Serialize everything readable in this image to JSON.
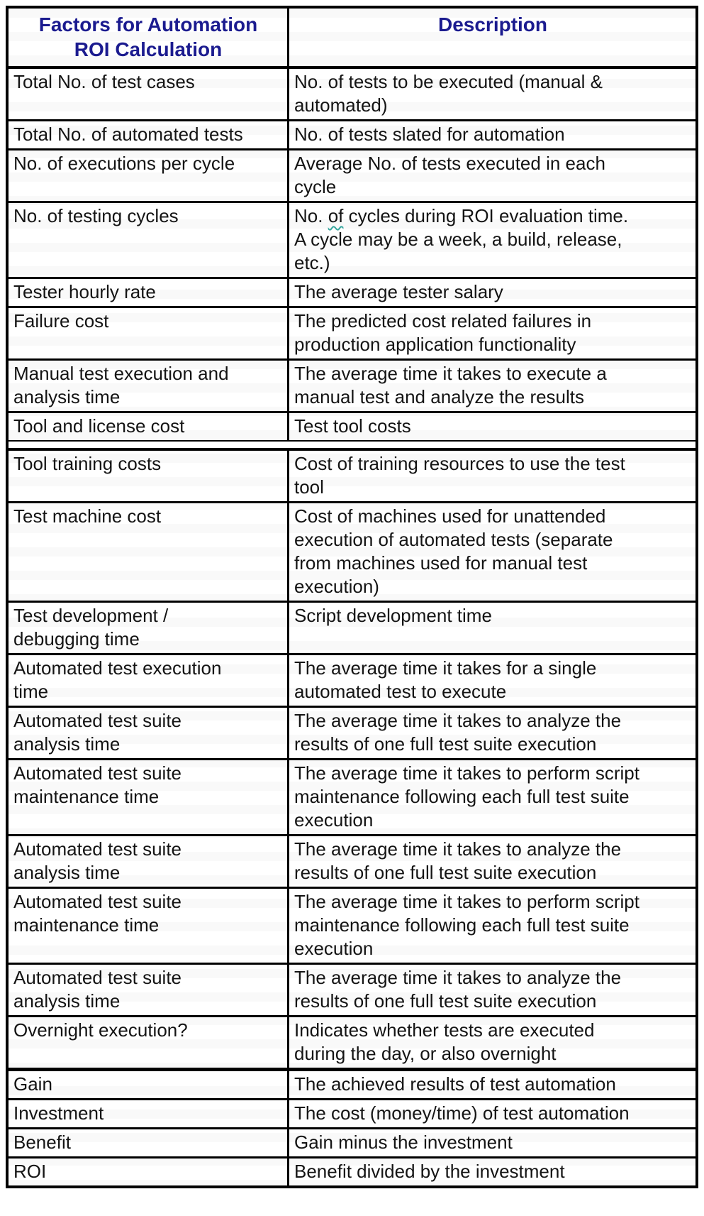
{
  "colors": {
    "header_text": "#1b1b8f",
    "body_text": "#141414",
    "border": "#000000",
    "squiggle": "#38a79f",
    "page_background": "#ffffff"
  },
  "table": {
    "header": {
      "factor": "Factors for Automation\nROI Calculation",
      "description": "Description"
    },
    "rows": [
      {
        "factor": "Total No. of test cases",
        "desc": "No. of tests to be executed (manual &\nautomated)"
      },
      {
        "factor": "Total No. of automated tests",
        "desc": "No. of tests slated for automation"
      },
      {
        "factor": "No. of executions per cycle",
        "desc": "Average No. of tests executed in each\ncycle"
      },
      {
        "factor": "No. of testing cycles",
        "desc": "No. of cycles during ROI evaluation time.\nA cycle may be a week, a build, release,\netc.)",
        "squiggle_word": "of"
      },
      {
        "factor": "Tester hourly rate",
        "desc": "The average tester salary"
      },
      {
        "factor": "Failure cost",
        "desc": "The predicted cost related failures in\nproduction application functionality"
      },
      {
        "factor": "Manual test execution and\nanalysis time",
        "desc": "The average time it takes to execute a\nmanual test and analyze the results"
      },
      {
        "factor": "Tool and license cost",
        "desc": "Test tool costs",
        "section_end": true
      },
      {
        "factor": "Tool training costs",
        "desc": "Cost of training resources to use the test\ntool"
      },
      {
        "factor": "Test machine cost",
        "desc": "Cost of machines used for unattended\nexecution of automated tests (separate\nfrom machines used for manual test\nexecution)"
      },
      {
        "factor": "Test development /\ndebugging time",
        "desc": "Script development time"
      },
      {
        "factor": "Automated test execution\ntime",
        "desc": "The average time it takes for a single\nautomated test to execute"
      },
      {
        "factor": "Automated test suite\nanalysis time",
        "desc": "The average time it takes to analyze the\nresults of one full test suite execution"
      },
      {
        "factor": "Automated test suite\nmaintenance time",
        "desc": "The average time it takes to perform script\nmaintenance following each full test suite\nexecution"
      },
      {
        "factor": "Automated test suite\nanalysis time",
        "desc": "The average time it takes to analyze the\nresults of one full test suite execution"
      },
      {
        "factor": "Automated test suite\nmaintenance time",
        "desc": "The average time it takes to perform script\nmaintenance following each full test suite\nexecution"
      },
      {
        "factor": "Automated test suite\nanalysis time",
        "desc": "The average time it takes to analyze the\nresults of one full test suite execution"
      },
      {
        "factor": "Overnight execution?",
        "desc": "Indicates whether tests are executed\nduring the day, or also overnight",
        "thick_after": true
      },
      {
        "factor": "Gain",
        "desc": "The achieved results of test automation"
      },
      {
        "factor": "Investment",
        "desc": "The cost (money/time) of test automation"
      },
      {
        "factor": "Benefit",
        "desc": "Gain minus the investment"
      },
      {
        "factor": "ROI",
        "desc": "Benefit divided by the investment"
      }
    ]
  }
}
